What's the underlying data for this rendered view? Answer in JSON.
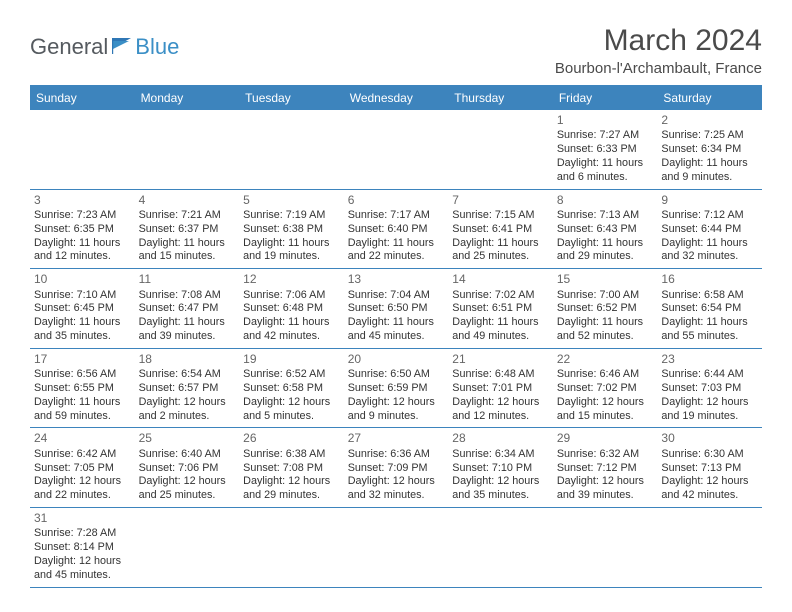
{
  "logo": {
    "text1": "General",
    "text2": "Blue"
  },
  "title": "March 2024",
  "location": "Bourbon-l'Archambault, France",
  "colors": {
    "header_bg": "#3d84bd",
    "header_text": "#ffffff",
    "border": "#3d84bd",
    "daynum": "#666666",
    "body_text": "#333333",
    "logo_gray": "#555a5f",
    "logo_blue": "#3b8fc6"
  },
  "day_names": [
    "Sunday",
    "Monday",
    "Tuesday",
    "Wednesday",
    "Thursday",
    "Friday",
    "Saturday"
  ],
  "weeks": [
    [
      null,
      null,
      null,
      null,
      null,
      {
        "d": "1",
        "sr": "Sunrise: 7:27 AM",
        "ss": "Sunset: 6:33 PM",
        "dl1": "Daylight: 11 hours",
        "dl2": "and 6 minutes."
      },
      {
        "d": "2",
        "sr": "Sunrise: 7:25 AM",
        "ss": "Sunset: 6:34 PM",
        "dl1": "Daylight: 11 hours",
        "dl2": "and 9 minutes."
      }
    ],
    [
      {
        "d": "3",
        "sr": "Sunrise: 7:23 AM",
        "ss": "Sunset: 6:35 PM",
        "dl1": "Daylight: 11 hours",
        "dl2": "and 12 minutes."
      },
      {
        "d": "4",
        "sr": "Sunrise: 7:21 AM",
        "ss": "Sunset: 6:37 PM",
        "dl1": "Daylight: 11 hours",
        "dl2": "and 15 minutes."
      },
      {
        "d": "5",
        "sr": "Sunrise: 7:19 AM",
        "ss": "Sunset: 6:38 PM",
        "dl1": "Daylight: 11 hours",
        "dl2": "and 19 minutes."
      },
      {
        "d": "6",
        "sr": "Sunrise: 7:17 AM",
        "ss": "Sunset: 6:40 PM",
        "dl1": "Daylight: 11 hours",
        "dl2": "and 22 minutes."
      },
      {
        "d": "7",
        "sr": "Sunrise: 7:15 AM",
        "ss": "Sunset: 6:41 PM",
        "dl1": "Daylight: 11 hours",
        "dl2": "and 25 minutes."
      },
      {
        "d": "8",
        "sr": "Sunrise: 7:13 AM",
        "ss": "Sunset: 6:43 PM",
        "dl1": "Daylight: 11 hours",
        "dl2": "and 29 minutes."
      },
      {
        "d": "9",
        "sr": "Sunrise: 7:12 AM",
        "ss": "Sunset: 6:44 PM",
        "dl1": "Daylight: 11 hours",
        "dl2": "and 32 minutes."
      }
    ],
    [
      {
        "d": "10",
        "sr": "Sunrise: 7:10 AM",
        "ss": "Sunset: 6:45 PM",
        "dl1": "Daylight: 11 hours",
        "dl2": "and 35 minutes."
      },
      {
        "d": "11",
        "sr": "Sunrise: 7:08 AM",
        "ss": "Sunset: 6:47 PM",
        "dl1": "Daylight: 11 hours",
        "dl2": "and 39 minutes."
      },
      {
        "d": "12",
        "sr": "Sunrise: 7:06 AM",
        "ss": "Sunset: 6:48 PM",
        "dl1": "Daylight: 11 hours",
        "dl2": "and 42 minutes."
      },
      {
        "d": "13",
        "sr": "Sunrise: 7:04 AM",
        "ss": "Sunset: 6:50 PM",
        "dl1": "Daylight: 11 hours",
        "dl2": "and 45 minutes."
      },
      {
        "d": "14",
        "sr": "Sunrise: 7:02 AM",
        "ss": "Sunset: 6:51 PM",
        "dl1": "Daylight: 11 hours",
        "dl2": "and 49 minutes."
      },
      {
        "d": "15",
        "sr": "Sunrise: 7:00 AM",
        "ss": "Sunset: 6:52 PM",
        "dl1": "Daylight: 11 hours",
        "dl2": "and 52 minutes."
      },
      {
        "d": "16",
        "sr": "Sunrise: 6:58 AM",
        "ss": "Sunset: 6:54 PM",
        "dl1": "Daylight: 11 hours",
        "dl2": "and 55 minutes."
      }
    ],
    [
      {
        "d": "17",
        "sr": "Sunrise: 6:56 AM",
        "ss": "Sunset: 6:55 PM",
        "dl1": "Daylight: 11 hours",
        "dl2": "and 59 minutes."
      },
      {
        "d": "18",
        "sr": "Sunrise: 6:54 AM",
        "ss": "Sunset: 6:57 PM",
        "dl1": "Daylight: 12 hours",
        "dl2": "and 2 minutes."
      },
      {
        "d": "19",
        "sr": "Sunrise: 6:52 AM",
        "ss": "Sunset: 6:58 PM",
        "dl1": "Daylight: 12 hours",
        "dl2": "and 5 minutes."
      },
      {
        "d": "20",
        "sr": "Sunrise: 6:50 AM",
        "ss": "Sunset: 6:59 PM",
        "dl1": "Daylight: 12 hours",
        "dl2": "and 9 minutes."
      },
      {
        "d": "21",
        "sr": "Sunrise: 6:48 AM",
        "ss": "Sunset: 7:01 PM",
        "dl1": "Daylight: 12 hours",
        "dl2": "and 12 minutes."
      },
      {
        "d": "22",
        "sr": "Sunrise: 6:46 AM",
        "ss": "Sunset: 7:02 PM",
        "dl1": "Daylight: 12 hours",
        "dl2": "and 15 minutes."
      },
      {
        "d": "23",
        "sr": "Sunrise: 6:44 AM",
        "ss": "Sunset: 7:03 PM",
        "dl1": "Daylight: 12 hours",
        "dl2": "and 19 minutes."
      }
    ],
    [
      {
        "d": "24",
        "sr": "Sunrise: 6:42 AM",
        "ss": "Sunset: 7:05 PM",
        "dl1": "Daylight: 12 hours",
        "dl2": "and 22 minutes."
      },
      {
        "d": "25",
        "sr": "Sunrise: 6:40 AM",
        "ss": "Sunset: 7:06 PM",
        "dl1": "Daylight: 12 hours",
        "dl2": "and 25 minutes."
      },
      {
        "d": "26",
        "sr": "Sunrise: 6:38 AM",
        "ss": "Sunset: 7:08 PM",
        "dl1": "Daylight: 12 hours",
        "dl2": "and 29 minutes."
      },
      {
        "d": "27",
        "sr": "Sunrise: 6:36 AM",
        "ss": "Sunset: 7:09 PM",
        "dl1": "Daylight: 12 hours",
        "dl2": "and 32 minutes."
      },
      {
        "d": "28",
        "sr": "Sunrise: 6:34 AM",
        "ss": "Sunset: 7:10 PM",
        "dl1": "Daylight: 12 hours",
        "dl2": "and 35 minutes."
      },
      {
        "d": "29",
        "sr": "Sunrise: 6:32 AM",
        "ss": "Sunset: 7:12 PM",
        "dl1": "Daylight: 12 hours",
        "dl2": "and 39 minutes."
      },
      {
        "d": "30",
        "sr": "Sunrise: 6:30 AM",
        "ss": "Sunset: 7:13 PM",
        "dl1": "Daylight: 12 hours",
        "dl2": "and 42 minutes."
      }
    ],
    [
      {
        "d": "31",
        "sr": "Sunrise: 7:28 AM",
        "ss": "Sunset: 8:14 PM",
        "dl1": "Daylight: 12 hours",
        "dl2": "and 45 minutes."
      },
      null,
      null,
      null,
      null,
      null,
      null
    ]
  ]
}
